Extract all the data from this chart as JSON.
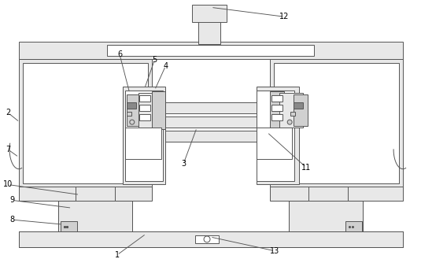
{
  "figsize": [
    5.35,
    3.43
  ],
  "dpi": 100,
  "line_color": "#555555",
  "bg_light": "#e8e8e8",
  "bg_white": "#ffffff",
  "bg_mid": "#d8d8d8",
  "bg_dark": "#999999"
}
